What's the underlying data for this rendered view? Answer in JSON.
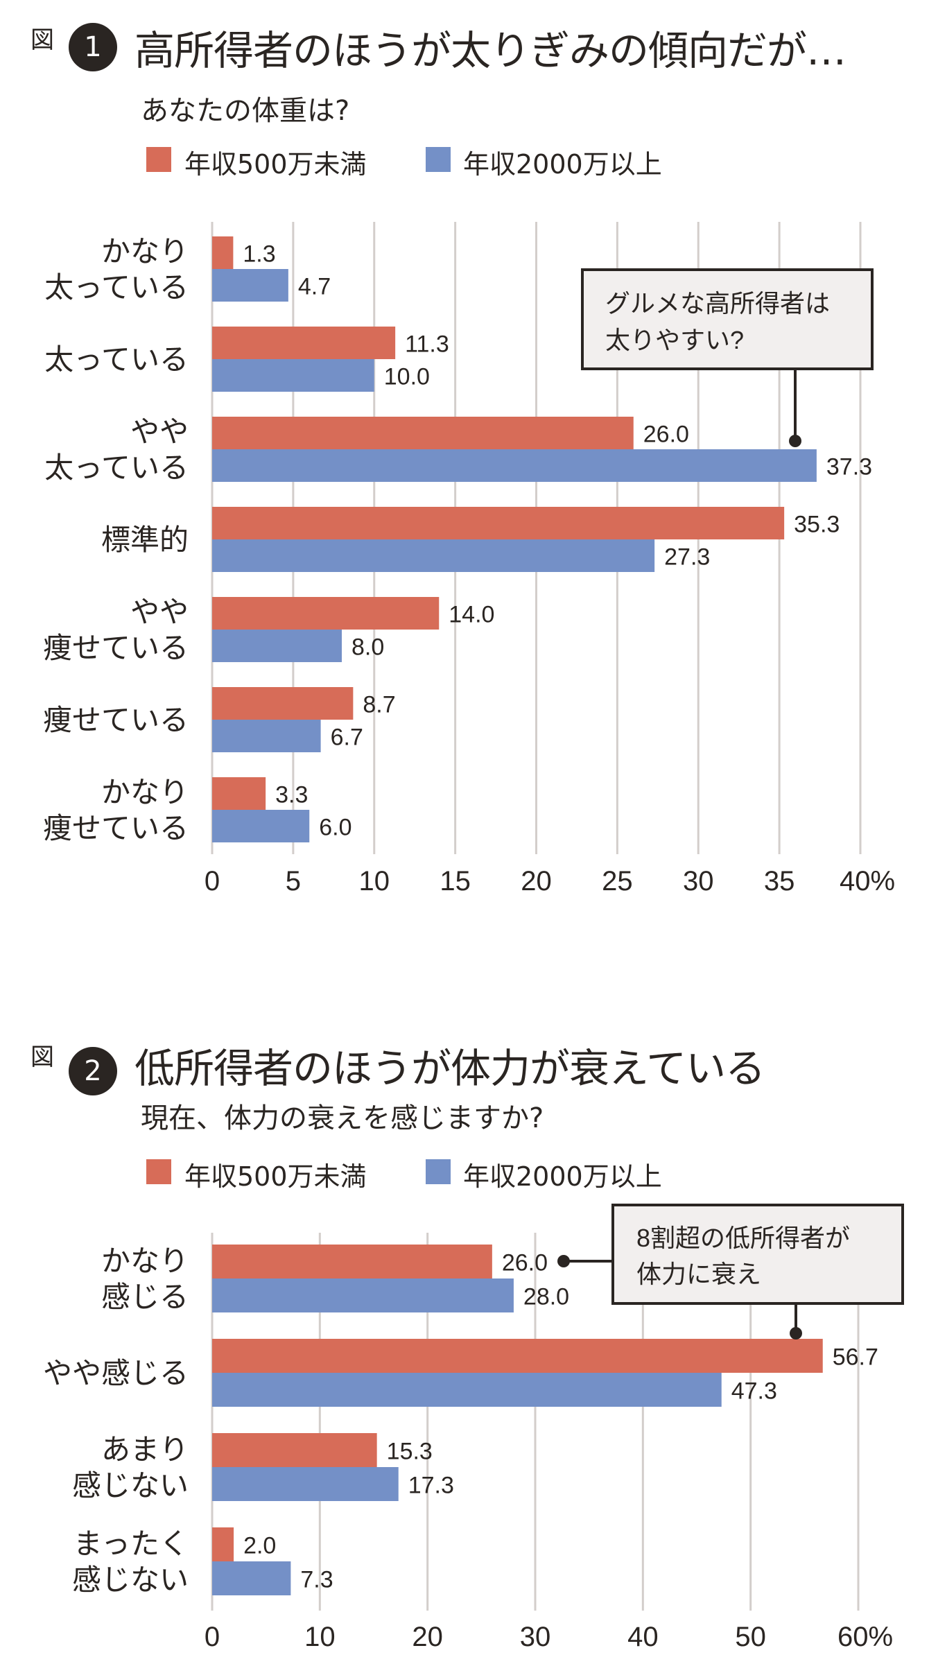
{
  "colors": {
    "series_low": "#d76c58",
    "series_high": "#7490c7",
    "grid": "#d3cecb",
    "callout_bg": "#f2efee",
    "ink": "#2a2522"
  },
  "chart_data": [
    {
      "type": "bar",
      "orientation": "horizontal",
      "fig_prefix": "図",
      "fig_number": "1",
      "title": "高所得者のほうが太りぎみの傾向だが…",
      "subtitle": "あなたの体重は?",
      "categories": [
        [
          "かなり",
          "太っている"
        ],
        [
          "太っている"
        ],
        [
          "やや",
          "太っている"
        ],
        [
          "標準的"
        ],
        [
          "やや",
          "痩せている"
        ],
        [
          "痩せている"
        ],
        [
          "かなり",
          "痩せている"
        ]
      ],
      "series": [
        {
          "name": "年収500万未満",
          "values": [
            1.3,
            11.3,
            26.0,
            35.3,
            14.0,
            8.7,
            3.3
          ],
          "labels": [
            "1.3",
            "11.3",
            "26.0",
            "35.3",
            "14.0",
            "8.7",
            "3.3"
          ]
        },
        {
          "name": "年収2000万以上",
          "values": [
            4.7,
            10.0,
            37.3,
            27.3,
            8.0,
            6.7,
            6.0
          ],
          "labels": [
            "4.7",
            "10.0",
            "37.3",
            "27.3",
            "8.0",
            "6.7",
            "6.0"
          ]
        }
      ],
      "xlim": [
        0,
        40
      ],
      "ticks": [
        "0",
        "5",
        "10",
        "15",
        "20",
        "25",
        "30",
        "35",
        "40"
      ],
      "tick_values": [
        0,
        5,
        10,
        15,
        20,
        25,
        30,
        35,
        40
      ],
      "unit": "%",
      "grid": true,
      "legend": "top",
      "annotation": {
        "lines": [
          "グルメな高所得者は",
          "太りやすい?"
        ],
        "points_to": {
          "category_index": 2,
          "series_index": 1
        }
      }
    },
    {
      "type": "bar",
      "orientation": "horizontal",
      "fig_prefix": "図",
      "fig_number": "2",
      "title": "低所得者のほうが体力が衰えている",
      "subtitle": "現在、体力の衰えを感じますか?",
      "categories": [
        [
          "かなり",
          "感じる"
        ],
        [
          "やや感じる"
        ],
        [
          "あまり",
          "感じない"
        ],
        [
          "まったく",
          "感じない"
        ]
      ],
      "series": [
        {
          "name": "年収500万未満",
          "values": [
            26.0,
            56.7,
            15.3,
            2.0
          ],
          "labels": [
            "26.0",
            "56.7",
            "15.3",
            "2.0"
          ]
        },
        {
          "name": "年収2000万以上",
          "values": [
            28.0,
            47.3,
            17.3,
            7.3
          ],
          "labels": [
            "28.0",
            "47.3",
            "17.3",
            "7.3"
          ]
        }
      ],
      "xlim": [
        0,
        60
      ],
      "ticks": [
        "0",
        "10",
        "20",
        "30",
        "40",
        "50",
        "60"
      ],
      "tick_values": [
        0,
        10,
        20,
        30,
        40,
        50,
        60
      ],
      "unit": "%",
      "grid": true,
      "legend": "top",
      "annotation": {
        "lines": [
          "8割超の低所得者が",
          "体力に衰え"
        ],
        "points_to": [
          {
            "category_index": 0,
            "series_index": 0
          },
          {
            "category_index": 1,
            "series_index": 0
          }
        ]
      }
    }
  ]
}
